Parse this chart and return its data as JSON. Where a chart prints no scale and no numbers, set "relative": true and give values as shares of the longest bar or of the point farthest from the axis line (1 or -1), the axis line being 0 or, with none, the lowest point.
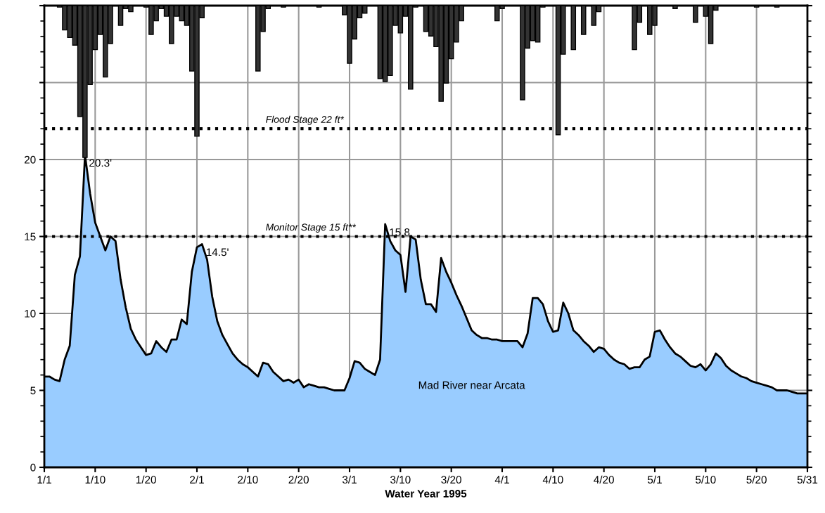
{
  "chart_data": [
    {
      "type": "area",
      "xlabel": "Water Year 1995",
      "categories": [
        "1/1",
        null,
        null,
        null,
        null,
        null,
        null,
        null,
        null,
        null,
        "1/10",
        null,
        null,
        null,
        null,
        null,
        null,
        null,
        null,
        null,
        "1/20",
        null,
        null,
        null,
        null,
        null,
        null,
        null,
        null,
        null,
        "2/1",
        null,
        null,
        null,
        null,
        null,
        null,
        null,
        null,
        null,
        "2/10",
        null,
        null,
        null,
        null,
        null,
        null,
        null,
        null,
        null,
        "2/20",
        null,
        null,
        null,
        null,
        null,
        null,
        null,
        null,
        null,
        "3/1",
        null,
        null,
        null,
        null,
        null,
        null,
        null,
        null,
        null,
        "3/10",
        null,
        null,
        null,
        null,
        null,
        null,
        null,
        null,
        null,
        "3/20",
        null,
        null,
        null,
        null,
        null,
        null,
        null,
        null,
        null,
        "4/1",
        null,
        null,
        null,
        null,
        null,
        null,
        null,
        null,
        null,
        "4/10",
        null,
        null,
        null,
        null,
        null,
        null,
        null,
        null,
        null,
        "4/20",
        null,
        null,
        null,
        null,
        null,
        null,
        null,
        null,
        null,
        "5/1",
        null,
        null,
        null,
        null,
        null,
        null,
        null,
        null,
        null,
        "5/10",
        null,
        null,
        null,
        null,
        null,
        null,
        null,
        null,
        null,
        "5/20",
        null,
        null,
        null,
        null,
        null,
        null,
        null,
        null,
        null,
        "5/31"
      ],
      "ylim": [
        0,
        30
      ],
      "yticks": [
        0,
        5,
        10,
        15,
        20,
        {
          "value": 25,
          "label": null
        },
        {
          "value": 30,
          "label": null
        }
      ],
      "grid": true,
      "series": [
        {
          "name": "Mad River near Arcata",
          "color": "#99ccff",
          "values": [
            5.9,
            5.9,
            5.7,
            5.6,
            7.0,
            7.9,
            12.5,
            13.7,
            20.3,
            17.8,
            15.9,
            15.0,
            14.1,
            15.0,
            14.7,
            12.2,
            10.4,
            9.0,
            8.3,
            7.8,
            7.3,
            7.4,
            8.2,
            7.8,
            7.5,
            8.3,
            8.3,
            9.6,
            9.3,
            12.7,
            14.3,
            14.5,
            13.5,
            11.1,
            9.5,
            8.6,
            8.0,
            7.4,
            7.0,
            6.7,
            6.5,
            6.2,
            5.9,
            6.8,
            6.7,
            6.2,
            5.9,
            5.6,
            5.7,
            5.5,
            5.7,
            5.2,
            5.4,
            5.3,
            5.2,
            5.2,
            5.1,
            5.0,
            5.0,
            5.0,
            5.8,
            6.9,
            6.8,
            6.4,
            6.2,
            6.0,
            7.0,
            15.8,
            14.7,
            14.1,
            13.8,
            11.4,
            15.0,
            14.8,
            12.2,
            10.6,
            10.6,
            10.1,
            13.6,
            12.7,
            12.0,
            11.2,
            10.5,
            9.7,
            8.9,
            8.6,
            8.4,
            8.4,
            8.3,
            8.3,
            8.2,
            8.2,
            8.2,
            8.2,
            7.8,
            8.7,
            11.0,
            11.0,
            10.6,
            9.5,
            8.8,
            8.9,
            10.7,
            10.0,
            8.9,
            8.6,
            8.2,
            7.9,
            7.5,
            7.8,
            7.7,
            7.3,
            7.0,
            6.8,
            6.7,
            6.4,
            6.5,
            6.5,
            7.0,
            7.2,
            8.8,
            8.9,
            8.3,
            7.8,
            7.4,
            7.2,
            6.9,
            6.6,
            6.5,
            6.7,
            6.3,
            6.7,
            7.4,
            7.1,
            6.6,
            6.3,
            6.1,
            5.9,
            5.8,
            5.6,
            5.5,
            5.4,
            5.3,
            5.2,
            5.0,
            5.0,
            5.0,
            4.9,
            4.8,
            4.8,
            4.8
          ]
        }
      ],
      "ref_lines": [
        {
          "axis": "y",
          "value": 22,
          "label": "Flood Stage 22 ft*",
          "line_style": "dotted",
          "color": "#000000"
        },
        {
          "axis": "y",
          "value": 15,
          "label": "Monitor Stage 15 ft**",
          "line_style": "dotted",
          "color": "#000000"
        }
      ],
      "value_labels": [
        null,
        null,
        null,
        null,
        null,
        null,
        null,
        null,
        "20.3'",
        null,
        null,
        null,
        null,
        null,
        null,
        null,
        null,
        null,
        null,
        null,
        null,
        null,
        null,
        null,
        null,
        null,
        null,
        null,
        null,
        null,
        null,
        "14.5'",
        null,
        null,
        null,
        null,
        null,
        null,
        null,
        null,
        null,
        null,
        null,
        null,
        null,
        null,
        null,
        null,
        null,
        null,
        null,
        null,
        null,
        null,
        null,
        null,
        null,
        null,
        null,
        null,
        null,
        null,
        null,
        null,
        null,
        null,
        null,
        "15.8",
        null,
        null,
        null,
        null,
        null,
        null,
        null,
        null,
        null,
        null,
        null,
        null,
        null,
        null,
        null,
        null,
        null,
        null,
        null,
        null,
        null,
        null,
        null,
        null,
        null,
        null,
        null,
        null,
        null,
        null,
        null,
        null,
        null,
        null,
        null,
        null,
        null,
        null,
        null,
        null,
        null,
        null,
        null,
        null,
        null,
        null,
        null,
        null,
        null,
        null,
        null,
        null,
        null,
        null,
        null,
        null,
        null,
        null,
        null,
        null,
        null,
        null,
        null,
        null,
        null,
        null,
        null,
        null,
        null,
        null,
        null,
        null,
        null,
        null,
        null,
        null,
        null,
        null,
        null,
        null,
        null,
        null,
        null,
        null
      ]
    },
    {
      "type": "bar",
      "relative": true,
      "color": "#333333",
      "categories": [
        null,
        null,
        null,
        null,
        null,
        null,
        null,
        null,
        null,
        null,
        null,
        null,
        null,
        null,
        null,
        null,
        null,
        null,
        null,
        null,
        null,
        null,
        null,
        null,
        null,
        null,
        null,
        null,
        null,
        null,
        null,
        null,
        null,
        null,
        null,
        null,
        null,
        null,
        null,
        null,
        null,
        null,
        null,
        null,
        null,
        null,
        null,
        null,
        null,
        null,
        null,
        null,
        null,
        null,
        null,
        null,
        null,
        null,
        null,
        null,
        null,
        null,
        null,
        null,
        null,
        null,
        null,
        null,
        null,
        null,
        null,
        null,
        null,
        null,
        null,
        null,
        null,
        null,
        null,
        null,
        null,
        null,
        null,
        null,
        null,
        null,
        null,
        null,
        null,
        null,
        null,
        null,
        null,
        null,
        null,
        null,
        null,
        null,
        null,
        null,
        null,
        null,
        null,
        null,
        null,
        null,
        null,
        null,
        null,
        null,
        null,
        null,
        null,
        null,
        null,
        null,
        null,
        null,
        null,
        null,
        null,
        null,
        null,
        null,
        null,
        null,
        null,
        null,
        null,
        null,
        null,
        null,
        null,
        null,
        null,
        null,
        null,
        null,
        null,
        null,
        null,
        null,
        null,
        null,
        null,
        null,
        null,
        null,
        null,
        null,
        null
      ],
      "values": [
        0,
        0,
        0,
        -0.01,
        -0.16,
        -0.21,
        -0.26,
        -0.73,
        -1,
        -0.52,
        -0.29,
        -0.19,
        -0.47,
        -0.25,
        0,
        -0.13,
        -0.02,
        -0.04,
        0,
        0,
        -0.01,
        -0.19,
        -0.1,
        -0.02,
        -0.07,
        -0.25,
        -0.07,
        -0.1,
        -0.13,
        -0.43,
        -0.86,
        -0.08,
        0,
        0,
        0,
        0,
        0,
        0,
        0,
        0,
        0,
        0,
        -0.43,
        -0.17,
        -0.02,
        0,
        0,
        -0.01,
        0,
        0,
        0,
        0,
        0,
        0,
        -0.01,
        0,
        0,
        0,
        0,
        -0.06,
        -0.38,
        -0.22,
        -0.08,
        -0.05,
        0,
        0,
        -0.48,
        -0.5,
        -0.46,
        -0.13,
        -0.18,
        -0.07,
        -0.55,
        -0.01,
        0,
        -0.17,
        -0.2,
        -0.27,
        -0.63,
        -0.51,
        -0.35,
        -0.24,
        -0.1,
        0,
        0,
        0,
        0,
        0,
        0,
        -0.1,
        -0.02,
        0,
        0,
        0,
        -0.62,
        -0.28,
        -0.23,
        -0.24,
        -0.01,
        0,
        0,
        -0.85,
        -0.32,
        0,
        -0.29,
        0,
        -0.19,
        0,
        -0.13,
        -0.04,
        0,
        0,
        0,
        0,
        0,
        0,
        -0.29,
        -0.11,
        0,
        -0.19,
        -0.13,
        0,
        0,
        0,
        -0.02,
        0,
        0,
        0,
        -0.11,
        0,
        -0.07,
        -0.25,
        -0.03,
        0,
        0,
        0,
        0,
        0,
        0,
        0,
        -0.01,
        0,
        0,
        0,
        -0.01,
        0,
        0,
        0,
        0,
        0,
        0
      ]
    }
  ]
}
